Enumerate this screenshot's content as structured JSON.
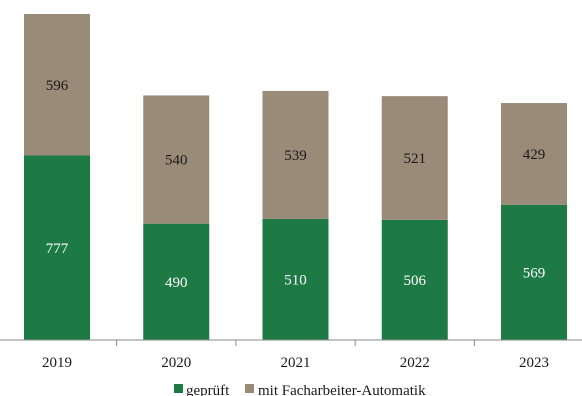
{
  "chart_data": {
    "type": "bar",
    "stacked": true,
    "categories": [
      "2019",
      "2020",
      "2021",
      "2022",
      "2023"
    ],
    "series": [
      {
        "name": "geprüft",
        "values": [
          777,
          490,
          510,
          506,
          569
        ],
        "color": "#1e7a45"
      },
      {
        "name": "mit Facharbeiter-Automatik",
        "values": [
          596,
          540,
          539,
          521,
          429
        ],
        "color": "#9a8b78"
      }
    ],
    "grid": false,
    "legend_position": "bottom"
  }
}
